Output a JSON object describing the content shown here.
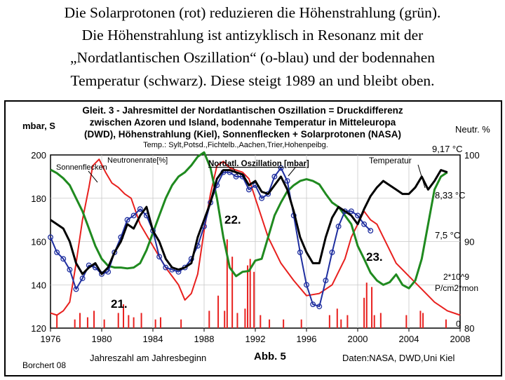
{
  "caption": {
    "line1": "Die Solarprotonen (rot) reduzieren die Höhenstrahlung (grün).",
    "line2": "Die Höhenstrahlung ist antizyklisch in Resonanz mit der",
    "line3": "„Nordatlantischen Oszillation“ (o-blau) und der bodennahen",
    "line4": "Temperatur (schwarz). Diese steigt 1989 an und bleibt oben."
  },
  "colors": {
    "nao": "#1f2fa0",
    "temperature": "#000000",
    "neutrons": "#1f8a1f",
    "sunspots": "#e8201e",
    "protons": "#e8201e",
    "frame": "#000000"
  },
  "chart_data": {
    "type": "line",
    "title": {
      "line1": "Gleit. 3 - Jahresmittel der Nordatlantischen Oszillation = Druckdifferenz",
      "line2": "zwischen Azoren und Island, bodennahe Temperatur in Mitteleuropa",
      "line3": "(DWD), Höhenstrahlung (Kiel), Sonnenflecken + Solarprotonen (NASA)"
    },
    "subtitle": "Temp.: Sylt,Potsd.,Fichtelb.,Aachen,Trier,Hohenpeibg.",
    "left_axis_label": "mbar, S",
    "right_axis_label": "Neutr. %",
    "xlabel": "Jahreszahl am Jahresbeginn",
    "figure_label": "Abb. 5",
    "source": "Daten:NASA, DWD,Uni Kiel",
    "author": "Borchert 08",
    "xlim": [
      1976,
      2008
    ],
    "x_ticks": [
      "1976",
      "1980",
      "1984",
      "1988",
      "1992",
      "1996",
      "2000",
      "2004",
      "2008"
    ],
    "left_ylim": [
      120,
      200
    ],
    "left_ticks": [
      "120",
      "140",
      "160",
      "180",
      "200"
    ],
    "right_ylim": [
      80,
      100
    ],
    "right_ticks": [
      "80",
      "90",
      "100"
    ],
    "annotations": {
      "sunspots": "Sonnenflecken",
      "neutrons": "Neutronenrate[%]",
      "nao": "Nordatl. Oszillation [mbar]",
      "temperature": "Temperatur",
      "temp_917": "9,17 °C",
      "temp_833": "8,33 °C",
      "temp_75": "7,5 °C",
      "proton_unit1": "2*10^9",
      "proton_unit2": "P/cm2*mon",
      "proton_zero": "0",
      "cycle21": "21.",
      "cycle22": "22.",
      "cycle23": "23."
    },
    "series": [
      {
        "name": "Sonnenflecken",
        "axis": "left",
        "x": [
          1976,
          1976.5,
          1977,
          1977.5,
          1978,
          1978.5,
          1979,
          1979.3,
          1979.8,
          1980.3,
          1980.8,
          1981.3,
          1981.8,
          1982.3,
          1983,
          1984,
          1985,
          1986,
          1986.5,
          1987,
          1987.5,
          1988,
          1988.5,
          1989,
          1989.5,
          1990,
          1990.5,
          1991,
          1991.5,
          1992,
          1993,
          1994,
          1995,
          1996,
          1997,
          1998,
          1999,
          1999.5,
          2000,
          2000.5,
          2001,
          2001.5,
          2002,
          2003,
          2004,
          2005,
          2006,
          2007,
          2008
        ],
        "y": [
          127,
          126,
          128,
          132,
          150,
          170,
          185,
          195,
          198,
          192,
          187,
          185,
          182,
          180,
          168,
          158,
          148,
          140,
          133,
          136,
          145,
          165,
          182,
          195,
          197,
          194,
          193,
          192,
          189,
          180,
          162,
          150,
          142,
          135,
          136,
          140,
          152,
          162,
          168,
          174,
          170,
          168,
          162,
          150,
          144,
          138,
          132,
          128,
          126
        ]
      },
      {
        "name": "Neutronenrate[%]",
        "axis": "right",
        "x": [
          1976,
          1976.5,
          1977,
          1977.5,
          1978,
          1978.5,
          1979,
          1979.5,
          1980,
          1980.5,
          1981,
          1981.5,
          1982,
          1982.5,
          1983,
          1983.5,
          1984,
          1984.5,
          1985,
          1985.5,
          1986,
          1986.5,
          1987,
          1987.5,
          1988,
          1988.5,
          1989,
          1989.5,
          1990,
          1990.5,
          1991,
          1991.5,
          1992,
          1992.5,
          1993,
          1993.5,
          1994,
          1994.5,
          1995,
          1995.5,
          1996,
          1996.5,
          1997,
          1997.5,
          1998,
          1998.5,
          1999,
          1999.5,
          2000,
          2000.5,
          2001,
          2001.5,
          2002,
          2002.5,
          2003,
          2003.5,
          2004,
          2004.5,
          2005,
          2005.5,
          2006,
          2006.5,
          2007
        ],
        "y": [
          98.3,
          97.9,
          97.3,
          96.5,
          95.0,
          93.5,
          91.5,
          89.5,
          88.0,
          87.2,
          87.0,
          87.0,
          86.9,
          87.0,
          87.5,
          89.0,
          91.0,
          93.0,
          95.0,
          96.5,
          97.5,
          98.0,
          98.8,
          99.8,
          100.3,
          98.5,
          95.0,
          90.5,
          87.0,
          86.0,
          86.5,
          86.6,
          87.8,
          88.0,
          90.5,
          93.0,
          94.5,
          95.8,
          96.5,
          97.0,
          97.2,
          97.0,
          96.6,
          95.5,
          94.5,
          94.0,
          93.0,
          92.0,
          89.5,
          88.0,
          86.4,
          85.5,
          85.0,
          85.3,
          86.2,
          85.0,
          84.6,
          85.5,
          88.0,
          92.0,
          96.0,
          97.5,
          98.0
        ]
      },
      {
        "name": "Nordatl. Oszillation [mbar]",
        "axis": "left",
        "x": [
          1976,
          1976.5,
          1977,
          1977.5,
          1978,
          1978.5,
          1979,
          1979.5,
          1980,
          1980.5,
          1981,
          1981.5,
          1982,
          1982.5,
          1983,
          1983.5,
          1984,
          1984.5,
          1985,
          1985.5,
          1986,
          1986.5,
          1987,
          1987.5,
          1988,
          1988.5,
          1989,
          1989.5,
          1990,
          1990.5,
          1991,
          1991.5,
          1992,
          1992.5,
          1993,
          1993.5,
          1994,
          1994.5,
          1995,
          1995.5,
          1996,
          1996.5,
          1997,
          1997.5,
          1998,
          1998.5,
          1999,
          1999.5,
          2000,
          2000.5,
          2001
        ],
        "y": [
          162,
          155,
          152,
          147,
          138,
          143,
          149,
          148,
          145,
          146,
          155,
          162,
          170,
          172,
          175,
          172,
          165,
          153,
          148,
          147,
          146,
          148,
          152,
          158,
          167,
          178,
          186,
          192,
          192,
          190,
          190,
          184,
          186,
          180,
          182,
          190,
          194,
          188,
          172,
          155,
          140,
          131,
          130,
          142,
          155,
          167,
          174,
          174,
          172,
          168,
          165
        ]
      },
      {
        "name": "Temperatur",
        "axis": "left",
        "x": [
          1976,
          1976.5,
          1977,
          1977.5,
          1978,
          1978.5,
          1979,
          1979.5,
          1980,
          1980.5,
          1981,
          1981.5,
          1982,
          1982.5,
          1983,
          1983.5,
          1984,
          1984.5,
          1985,
          1985.5,
          1986,
          1986.5,
          1987,
          1987.5,
          1988,
          1988.5,
          1989,
          1989.5,
          1990,
          1990.5,
          1991,
          1991.5,
          1992,
          1992.5,
          1993,
          1993.5,
          1994,
          1994.5,
          1995,
          1995.5,
          1996,
          1996.5,
          1997,
          1997.5,
          1998,
          1998.5,
          1999,
          1999.5,
          2000,
          2000.5,
          2001,
          2001.5,
          2002,
          2002.5,
          2003,
          2003.5,
          2004,
          2004.5,
          2005,
          2005.5,
          2006,
          2006.5,
          2007
        ],
        "y": [
          170,
          168,
          166,
          160,
          150,
          145,
          148,
          150,
          145,
          148,
          155,
          160,
          168,
          166,
          172,
          176,
          165,
          160,
          152,
          148,
          147,
          148,
          150,
          162,
          170,
          178,
          189,
          193,
          193,
          192,
          191,
          186,
          188,
          183,
          182,
          186,
          190,
          184,
          174,
          162,
          155,
          150,
          150,
          162,
          171,
          176,
          174,
          172,
          168,
          175,
          181,
          185,
          188,
          186,
          184,
          182,
          182,
          185,
          190,
          184,
          188,
          193,
          192
        ]
      }
    ],
    "protons": {
      "name": "Solarprotonen",
      "axis": "left_baseline",
      "x": [
        1976.5,
        1977.9,
        1978.3,
        1978.9,
        1979.4,
        1980.2,
        1981.3,
        1981.7,
        1982.1,
        1982.5,
        1983.1,
        1984.2,
        1984.6,
        1986.2,
        1988.4,
        1989.1,
        1989.6,
        1989.8,
        1990.2,
        1990.6,
        1991.2,
        1991.4,
        1991.6,
        1991.9,
        1992.4,
        1993.1,
        1994.2,
        1995.6,
        1997.8,
        1998.4,
        1998.7,
        1999.2,
        2000.5,
        2000.7,
        2001.1,
        2001.3,
        2001.8,
        2003.8,
        2004.9,
        2005.1,
        2006.9
      ],
      "y": [
        126,
        124,
        127,
        125,
        128,
        124,
        127,
        131,
        126,
        125,
        127,
        124,
        125,
        124,
        128,
        135,
        128,
        161,
        153,
        127,
        129,
        149,
        152,
        146,
        126,
        124,
        124,
        124,
        126,
        129,
        124,
        126,
        134,
        141,
        139,
        126,
        127,
        126,
        128,
        127,
        124
      ]
    }
  }
}
